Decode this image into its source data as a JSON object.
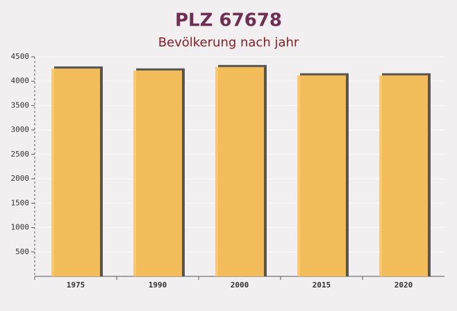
{
  "chart_data": {
    "type": "bar",
    "title": "PLZ 67678",
    "subtitle": "Bevölkerung nach jahr",
    "categories": [
      "1975",
      "1990",
      "2000",
      "2015",
      "2020"
    ],
    "values": [
      4260,
      4220,
      4290,
      4120,
      4120
    ],
    "color": "#ffc55a",
    "ylim": [
      0,
      4500
    ],
    "yticks": [
      500,
      1000,
      1500,
      2000,
      2500,
      3000,
      3500,
      4000,
      4500
    ],
    "grid": true
  }
}
